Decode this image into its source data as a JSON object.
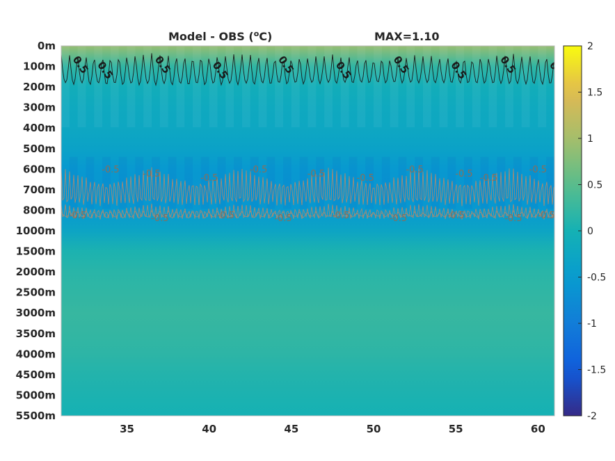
{
  "chart_data": {
    "type": "heatmap",
    "title_left": "Model - OBS (",
    "title_unit_sup": "o",
    "title_unit_tail": "C)",
    "title_max": "MAX=1.10",
    "x_ticks": [
      "35",
      "40",
      "45",
      "50",
      "55",
      "60"
    ],
    "xlim": [
      31,
      61
    ],
    "y_ticks": [
      "0m",
      "100m",
      "200m",
      "300m",
      "400m",
      "500m",
      "600m",
      "700m",
      "800m",
      "1000m",
      "1500m",
      "2000m",
      "2500m",
      "3000m",
      "3500m",
      "4000m",
      "4500m",
      "5000m",
      "5500m"
    ],
    "colorbar": {
      "clim": [
        -2,
        2
      ],
      "ticks": [
        "2",
        "1.5",
        "1",
        "0.5",
        "0",
        "-0.5",
        "-1",
        "-1.5",
        "-2"
      ],
      "colormap": "parula"
    },
    "depth_profile": [
      {
        "depth": "0m",
        "value": 0.9
      },
      {
        "depth": "100m",
        "value": 0.2
      },
      {
        "depth": "200m",
        "value": -0.1
      },
      {
        "depth": "300m",
        "value": -0.2
      },
      {
        "depth": "400m",
        "value": -0.25
      },
      {
        "depth": "500m",
        "value": -0.35
      },
      {
        "depth": "600m",
        "value": -0.55
      },
      {
        "depth": "700m",
        "value": -0.6
      },
      {
        "depth": "800m",
        "value": -0.55
      },
      {
        "depth": "1000m",
        "value": -0.3
      },
      {
        "depth": "1500m",
        "value": 0.05
      },
      {
        "depth": "2000m",
        "value": 0.15
      },
      {
        "depth": "2500m",
        "value": 0.2
      },
      {
        "depth": "3000m",
        "value": 0.25
      },
      {
        "depth": "3500m",
        "value": 0.22
      },
      {
        "depth": "4000m",
        "value": 0.18
      },
      {
        "depth": "4500m",
        "value": 0.1
      },
      {
        "depth": "5000m",
        "value": 0.05
      },
      {
        "depth": "5500m",
        "value": 0.0
      }
    ],
    "contour_positive": {
      "level": 0.5,
      "label": "0.5",
      "label_x": [
        32,
        33.5,
        37,
        40.5,
        44.5,
        48,
        51.5,
        55,
        58,
        61
      ]
    },
    "contour_negative": {
      "level": -0.5,
      "label": "-0.5",
      "label_x_upper": [
        34,
        36.5,
        40,
        43,
        46.5,
        49.5,
        52.5,
        55.5,
        57,
        60
      ],
      "label_x_lower": [
        32,
        37,
        41,
        44.5,
        48,
        51.5,
        55,
        58.5,
        60.5
      ]
    }
  }
}
